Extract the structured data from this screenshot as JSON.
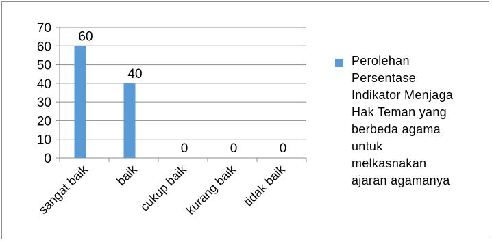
{
  "chart_data": {
    "type": "bar",
    "categories": [
      "sangat baik",
      "baik",
      "cukup baik",
      "kurang baik",
      "tidak baik"
    ],
    "series": [
      {
        "name": "Perolehan Persentase Indikator Menjaga Hak Teman yang berbeda agama untuk melkasnakan ajaran agamanya",
        "values": [
          60,
          40,
          0,
          0,
          0
        ],
        "color": "#5b9bd5"
      }
    ],
    "y_ticks": [
      "0",
      "10",
      "20",
      "30",
      "40",
      "50",
      "60",
      "70"
    ],
    "data_labels": [
      "60",
      "40",
      "0",
      "0",
      "0"
    ],
    "ylim": [
      0,
      70
    ],
    "grid": true,
    "legend_position": "right",
    "title": "",
    "xlabel": "",
    "ylabel": ""
  },
  "legend": {
    "lines": [
      "Perolehan",
      "Persentase",
      "Indikator Menjaga",
      "Hak Teman yang",
      "berbeda agama",
      "untuk",
      "melkasnakan",
      "ajaran agamanya"
    ]
  }
}
